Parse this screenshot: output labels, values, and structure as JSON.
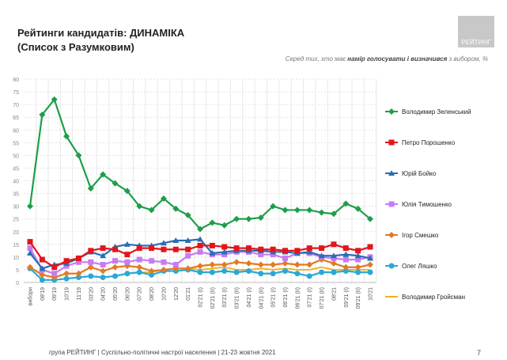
{
  "header": {
    "title": "Рейтинги кандидатів: ДИНАМІКА",
    "subtitle": "(Список з Разумковим)",
    "logo_text": "РЕЙТИНГ",
    "note_pre": "Серед тих, хто має ",
    "note_bold": "намір голосувати і визначився",
    "note_post": " з вибором, %"
  },
  "footer": {
    "text": "група РЕЙТИНГ | Суспільно-політичні настрої населення | 21-23 жовтня 2021",
    "page": "7"
  },
  "chart_data": {
    "type": "line",
    "ylim": [
      0,
      80
    ],
    "yticks": [
      0,
      5,
      10,
      15,
      20,
      25,
      30,
      35,
      40,
      45,
      50,
      55,
      60,
      65,
      70,
      75,
      80
    ],
    "grid": true,
    "legend": "right",
    "categories": [
      "вибори",
      "08'19",
      "09'19",
      "10'19",
      "11'19",
      "03'20",
      "04'20",
      "05'20",
      "06'20",
      "07'20",
      "08'20",
      "10'20",
      "12'20",
      "01'21",
      "02'21 (I)",
      "02'21 (II)",
      "03'21 (I)",
      "03'21 (II)",
      "04'21 (I)",
      "04'21 (II)",
      "05'21 (I)",
      "06'21 (I)",
      "06'21 (II)",
      "07'21 (I)",
      "07'21 (II)",
      "08'21",
      "09'21 (I)",
      "09'21 (II)",
      "10'21"
    ],
    "series": [
      {
        "name": "Володимир Зеленський",
        "color": "#1e9e4a",
        "marker": "diamond",
        "values": [
          30,
          66,
          72,
          57.5,
          50,
          37,
          42.5,
          39,
          36,
          30,
          28.5,
          33,
          29,
          26.5,
          21,
          23.5,
          22.5,
          25,
          25,
          25.5,
          30,
          28.5,
          28.5,
          28.5,
          27.5,
          27,
          31,
          29,
          25
        ]
      },
      {
        "name": "Петро Порошенко",
        "color": "#e3151b",
        "marker": "square",
        "values": [
          16,
          9,
          6,
          8.5,
          9.5,
          12.5,
          13.5,
          13,
          11,
          13.5,
          13.5,
          13,
          13,
          13,
          14.5,
          14.5,
          14,
          13.5,
          13.5,
          13,
          13,
          12.5,
          12.5,
          13.5,
          13.5,
          15,
          13.5,
          12.5,
          14
        ]
      },
      {
        "name": "Юрій Бойко",
        "color": "#2a6db3",
        "marker": "triangle",
        "values": [
          11.5,
          5.5,
          7,
          7.5,
          9.5,
          12,
          10.5,
          14,
          15,
          14.5,
          14.5,
          15.5,
          16.5,
          16.5,
          17,
          11.5,
          12,
          12.5,
          12.5,
          12.5,
          12,
          12,
          11.5,
          12,
          10.5,
          10.5,
          11,
          10.5,
          9.5
        ]
      },
      {
        "name": "Юлія Тимошенко",
        "color": "#c77cf0",
        "marker": "square",
        "values": [
          13.5,
          5,
          3.5,
          6.5,
          8,
          8,
          7,
          8.5,
          8,
          9,
          8.5,
          8,
          7,
          10.5,
          12,
          11,
          11,
          12,
          12,
          11,
          11,
          9.5,
          11.5,
          11.5,
          10,
          9.5,
          9,
          9,
          10
        ]
      },
      {
        "name": "Ігор Смешко",
        "color": "#e07b25",
        "marker": "diamond",
        "values": [
          6,
          3,
          2,
          3.5,
          3.5,
          6,
          4.5,
          6,
          6.5,
          6,
          4.5,
          5,
          5.5,
          5.5,
          6.5,
          7,
          7,
          8,
          7.5,
          7,
          7,
          7.5,
          7,
          7,
          9,
          7.5,
          6,
          6,
          7
        ]
      },
      {
        "name": "Олег Ляшко",
        "color": "#29a8d8",
        "marker": "circle",
        "values": [
          5.5,
          1,
          1,
          1.5,
          2,
          2.5,
          2,
          2.5,
          3.5,
          4,
          3,
          4.5,
          4.5,
          5,
          4,
          4,
          4.5,
          4,
          4.5,
          3.5,
          3.5,
          4.5,
          3.5,
          2.5,
          4,
          4,
          4.5,
          4,
          4
        ]
      },
      {
        "name": "Володимир Гройсман",
        "color": "#f2b01e",
        "marker": "none",
        "values": [
          null,
          null,
          null,
          null,
          null,
          null,
          null,
          null,
          null,
          4,
          4,
          5,
          5.5,
          5.5,
          5,
          5.5,
          6,
          5,
          5,
          5.5,
          5,
          5.5,
          5,
          5,
          6,
          5,
          5,
          5,
          5
        ]
      }
    ]
  }
}
